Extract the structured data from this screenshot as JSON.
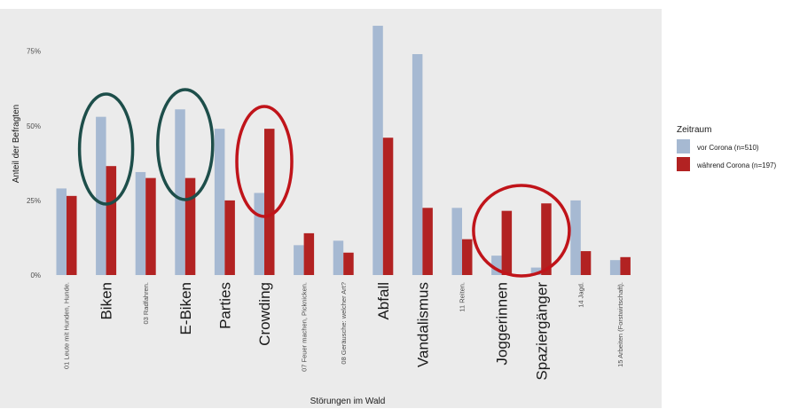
{
  "chart_data": {
    "type": "bar",
    "xlabel": "Störungen im Wald",
    "ylabel": "Anteil der Befragten",
    "ylim": [
      0,
      0.85
    ],
    "y_ticks": [
      0,
      0.25,
      0.5,
      0.75
    ],
    "y_tick_labels": [
      "0%",
      "25%",
      "50%",
      "75%"
    ],
    "grid": false,
    "panel_background": "#ebebeb",
    "legend_position": "right",
    "categories": [
      "01 Leute mit Hunden, Hunde.",
      "Biken",
      "03 Radfahren.",
      "E-Biken",
      "Parties",
      "Crowding",
      "07 Feuer machen, Picknicken.",
      "08 Geräusche: welcher Art?",
      "Abfall",
      "Vandalismus",
      "11 Reiten.",
      "Joggerinnen",
      "Spaziergänger",
      "14 Jagd.",
      "15 Arbeiten (Forstwirtschaft)."
    ],
    "category_label_size": [
      "small",
      "large",
      "small",
      "large",
      "large",
      "large",
      "small",
      "small",
      "large",
      "large",
      "small",
      "large",
      "large",
      "small",
      "small"
    ],
    "legend": {
      "title": "Zeitraum"
    },
    "series": [
      {
        "name": "vor Corona (n=510)",
        "color": "#a6b9d2",
        "values": [
          0.29,
          0.53,
          0.345,
          0.555,
          0.49,
          0.275,
          0.1,
          0.115,
          0.835,
          0.74,
          0.225,
          0.065,
          0.025,
          0.25,
          0.05
        ]
      },
      {
        "name": "während Corona (n=197)",
        "color": "#b22222",
        "values": [
          0.265,
          0.365,
          0.325,
          0.325,
          0.25,
          0.49,
          0.14,
          0.075,
          0.46,
          0.225,
          0.12,
          0.215,
          0.24,
          0.08,
          0.06
        ]
      }
    ],
    "annotations": [
      {
        "type": "ellipse",
        "color": "#1d4e4a",
        "around": [
          "Biken"
        ]
      },
      {
        "type": "ellipse",
        "color": "#1d4e4a",
        "around": [
          "E-Biken"
        ]
      },
      {
        "type": "ellipse",
        "color": "#c0141a",
        "around": [
          "Crowding"
        ]
      },
      {
        "type": "ellipse",
        "color": "#c0141a",
        "around": [
          "Joggerinnen",
          "Spaziergänger"
        ]
      }
    ]
  }
}
